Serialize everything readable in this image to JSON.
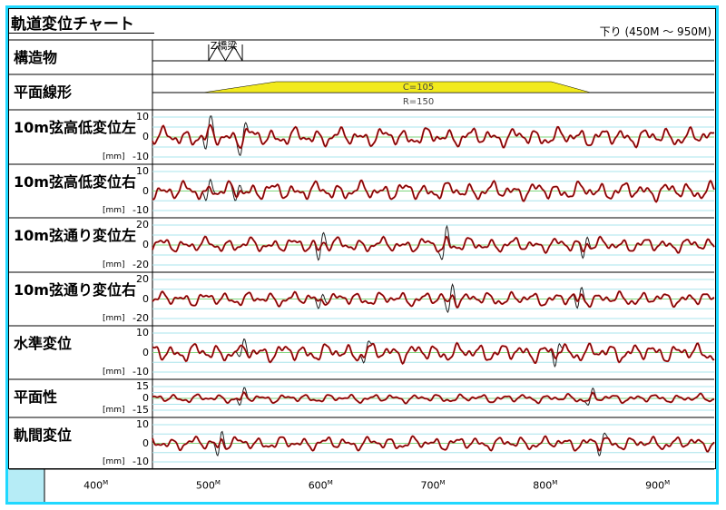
{
  "title": "軌道変位チャート",
  "range_label": "下り (450M 〜 950M)",
  "rows": [
    {
      "label": "構造物"
    },
    {
      "label": "平面線形"
    },
    {
      "label": "10m弦高低変位左",
      "ticks": [
        "10",
        "0",
        "-10"
      ],
      "unit": "[mm]"
    },
    {
      "label": "10m弦高低変位右",
      "ticks": [
        "10",
        "0",
        "-10"
      ],
      "unit": "[mm]"
    },
    {
      "label": "10m弦通り変位左",
      "ticks": [
        "20",
        "0",
        "-20"
      ],
      "unit": "[mm]"
    },
    {
      "label": "10m弦通り変位右",
      "ticks": [
        "20",
        "0",
        "-20"
      ],
      "unit": "[mm]"
    },
    {
      "label": "水準変位",
      "ticks": [
        "10",
        "0",
        "-10"
      ],
      "unit": "[mm]"
    },
    {
      "label": "平面性",
      "ticks": [
        "15",
        "0",
        "-15"
      ],
      "unit": "[mm]"
    },
    {
      "label": "軌間変位",
      "ticks": [
        "10",
        "0",
        "-10"
      ],
      "unit": "[mm]"
    }
  ],
  "structure": {
    "label": "Z橋梁",
    "start_m": 500,
    "end_m": 530
  },
  "alignment": {
    "curve_label": "C=105",
    "radius_label": "R=150",
    "transition_start_m": 495,
    "full_start_m": 560,
    "full_end_m": 805,
    "transition_end_m": 840,
    "color": "#f2ea1d"
  },
  "km_axis": {
    "labels": [
      "400",
      "500",
      "600",
      "700",
      "800",
      "900"
    ],
    "unit": "M",
    "values": [
      400,
      500,
      600,
      700,
      800,
      900
    ],
    "min": 450,
    "max": 950
  },
  "colors": {
    "frame": "#1fd8ff",
    "grid": "#a8e4ec",
    "zero": "#7ed67e",
    "measured": "#e02020",
    "trace": "#202020"
  },
  "chart_data": [
    {
      "type": "line",
      "title": "10m弦高低変位左",
      "ylabel": "[mm]",
      "xlim": [
        450,
        950
      ],
      "ylim": [
        -10,
        10
      ],
      "series_style": "oscillating track irregularity, approx. amplitude ±4 mm, peaks near 500M and 530M reaching ±10 mm"
    },
    {
      "type": "line",
      "title": "10m弦高低変位右",
      "ylabel": "[mm]",
      "xlim": [
        450,
        950
      ],
      "ylim": [
        -10,
        10
      ]
    },
    {
      "type": "line",
      "title": "10m弦通り変位左",
      "ylabel": "[mm]",
      "xlim": [
        450,
        950
      ],
      "ylim": [
        -20,
        20
      ]
    },
    {
      "type": "line",
      "title": "10m弦通り変位右",
      "ylabel": "[mm]",
      "xlim": [
        450,
        950
      ],
      "ylim": [
        -20,
        20
      ]
    },
    {
      "type": "line",
      "title": "水準変位",
      "ylabel": "[mm]",
      "xlim": [
        450,
        950
      ],
      "ylim": [
        -10,
        10
      ]
    },
    {
      "type": "line",
      "title": "平面性",
      "ylabel": "[mm]",
      "xlim": [
        450,
        950
      ],
      "ylim": [
        -15,
        15
      ]
    },
    {
      "type": "line",
      "title": "軌間変位",
      "ylabel": "[mm]",
      "xlim": [
        450,
        950
      ],
      "ylim": [
        -10,
        10
      ]
    }
  ]
}
